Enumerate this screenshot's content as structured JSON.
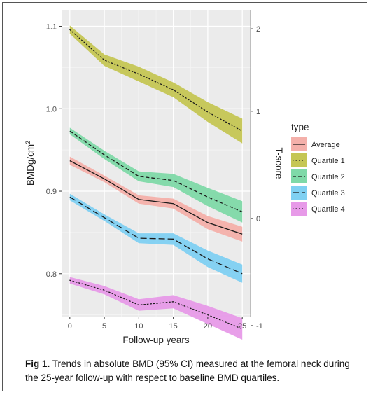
{
  "figure": {
    "caption_label": "Fig 1.",
    "caption_text": "Trends in absolute BMD (95% CI) measured at the femoral neck during the 25-year follow-up with respect to baseline BMD quartiles."
  },
  "chart_data": {
    "type": "line",
    "title": "",
    "xlabel": "Follow-up years",
    "ylabel": "BMDg/cm",
    "ylabel_superscript": "2",
    "y2label": "T-score",
    "x": [
      0,
      5,
      10,
      15,
      20,
      25
    ],
    "x_ticks": [
      "0",
      "5",
      "10",
      "15",
      "20",
      "25"
    ],
    "xlim": [
      -1.2,
      26.2
    ],
    "y_ticks": [
      "0.8",
      "0.9",
      "1.0",
      "1.1"
    ],
    "y_tick_values": [
      0.8,
      0.9,
      1.0,
      1.1
    ],
    "ylim": [
      0.748,
      1.12
    ],
    "y2_ticks": [
      "-1",
      "0",
      "1",
      "2"
    ],
    "y2_tick_bmd": [
      0.737,
      0.867,
      0.997,
      1.097
    ],
    "grid": true,
    "legend": {
      "title": "type",
      "placement": "right"
    },
    "series": [
      {
        "name": "Average",
        "values": [
          0.937,
          0.915,
          0.89,
          0.885,
          0.862,
          0.848
        ],
        "ci_low": [
          0.932,
          0.911,
          0.885,
          0.879,
          0.854,
          0.839
        ],
        "ci_high": [
          0.942,
          0.919,
          0.895,
          0.891,
          0.87,
          0.857
        ],
        "line_color": "#f8766d",
        "fill_color": "#f4b0aa",
        "dash": "solid"
      },
      {
        "name": "Quartile 1",
        "values": [
          1.096,
          1.059,
          1.042,
          1.023,
          0.996,
          0.973
        ],
        "ci_low": [
          1.091,
          1.052,
          1.033,
          1.014,
          0.984,
          0.958
        ],
        "ci_high": [
          1.101,
          1.066,
          1.051,
          1.032,
          1.008,
          0.988
        ],
        "line_color": "#7cae00",
        "fill_color": "#c5c654",
        "dash": "dotted"
      },
      {
        "name": "Quartile 2",
        "values": [
          0.973,
          0.944,
          0.918,
          0.913,
          0.893,
          0.875
        ],
        "ci_low": [
          0.969,
          0.939,
          0.912,
          0.905,
          0.882,
          0.862
        ],
        "ci_high": [
          0.977,
          0.949,
          0.924,
          0.921,
          0.904,
          0.888
        ],
        "line_color": "#00bf7d",
        "fill_color": "#7fd9a8",
        "dash": "dashed"
      },
      {
        "name": "Quartile 3",
        "values": [
          0.893,
          0.868,
          0.843,
          0.842,
          0.818,
          0.8
        ],
        "ci_low": [
          0.889,
          0.864,
          0.837,
          0.835,
          0.808,
          0.789
        ],
        "ci_high": [
          0.897,
          0.872,
          0.849,
          0.849,
          0.828,
          0.811
        ],
        "line_color": "#00b0f6",
        "fill_color": "#7fd0f2",
        "dash": "longdash"
      },
      {
        "name": "Quartile 4",
        "values": [
          0.792,
          0.78,
          0.762,
          0.766,
          0.75,
          0.733
        ],
        "ci_low": [
          0.788,
          0.775,
          0.755,
          0.758,
          0.739,
          0.72
        ],
        "ci_high": [
          0.796,
          0.785,
          0.769,
          0.774,
          0.761,
          0.746
        ],
        "line_color": "#e76bf3",
        "fill_color": "#e79ae8",
        "dash": "dotted"
      }
    ]
  }
}
